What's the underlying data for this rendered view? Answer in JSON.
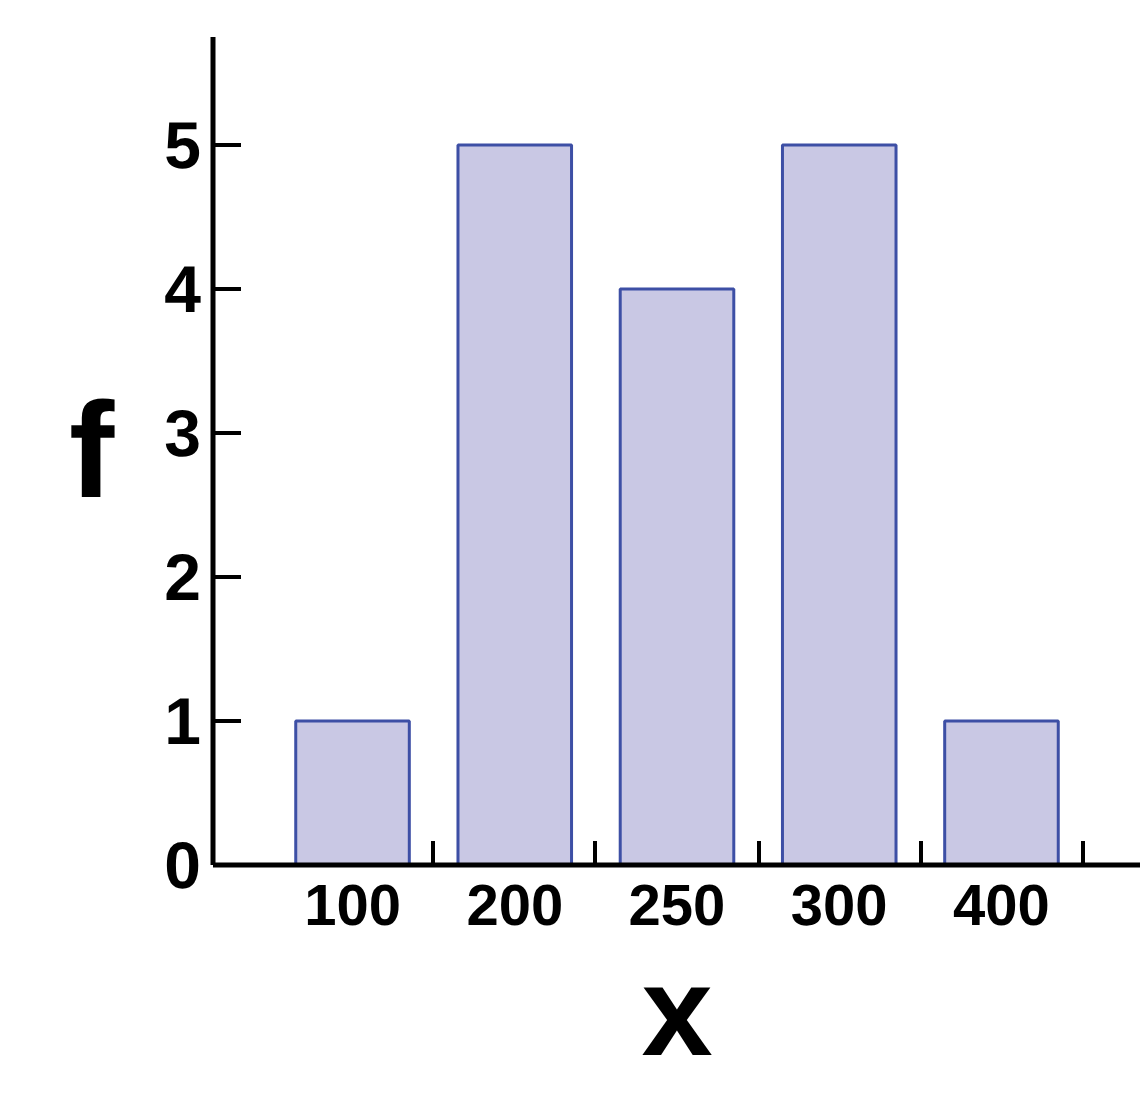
{
  "chart_data": {
    "type": "bar",
    "xlabel": "x",
    "ylabel": "f",
    "categories": [
      "100",
      "200",
      "250",
      "300",
      "400"
    ],
    "values": [
      1,
      5,
      4,
      5,
      1
    ],
    "color": "#c9c8e4",
    "ylim": [
      0,
      5.75
    ],
    "yticks": [
      0,
      1,
      2,
      3,
      4,
      5
    ]
  }
}
